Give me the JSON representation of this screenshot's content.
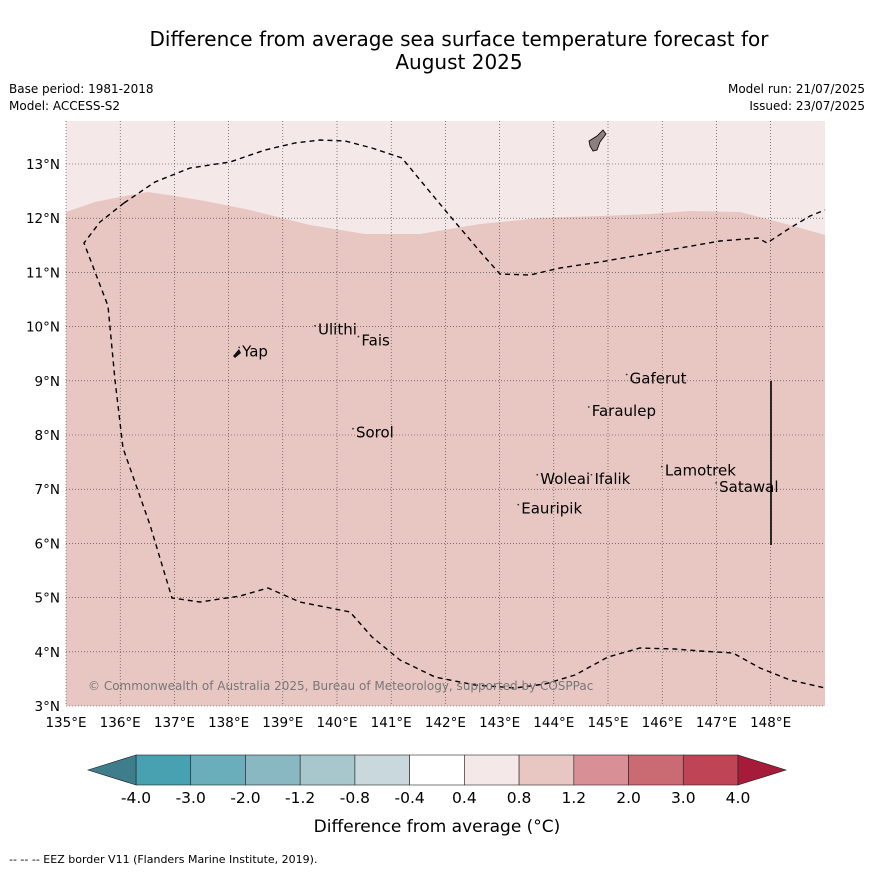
{
  "title_line1": "Difference from average sea surface temperature forecast for",
  "title_line2": "August 2025",
  "meta": {
    "base_period": "Base period: 1981-2018",
    "model": "Model: ACCESS-S2",
    "model_run": "Model run: 21/07/2025",
    "issued": "Issued: 23/07/2025"
  },
  "map": {
    "lon_ticks": [
      "135°E",
      "136°E",
      "137°E",
      "138°E",
      "139°E",
      "140°E",
      "141°E",
      "142°E",
      "143°E",
      "144°E",
      "145°E",
      "146°E",
      "147°E",
      "148°E"
    ],
    "lat_ticks": [
      "3°N",
      "4°N",
      "5°N",
      "6°N",
      "7°N",
      "8°N",
      "9°N",
      "10°N",
      "11°N",
      "12°N",
      "13°N"
    ],
    "extent": {
      "lon": [
        135,
        149
      ],
      "lat": [
        3,
        13.8
      ]
    },
    "places": [
      {
        "name": "Yap",
        "lon": 138.25,
        "lat": 9.45
      },
      {
        "name": "Ulithi",
        "lon": 139.65,
        "lat": 9.85
      },
      {
        "name": "Fais",
        "lon": 140.45,
        "lat": 9.65
      },
      {
        "name": "Gaferut",
        "lon": 145.4,
        "lat": 8.95
      },
      {
        "name": "Faraulep",
        "lon": 144.7,
        "lat": 8.35
      },
      {
        "name": "Sorol",
        "lon": 140.35,
        "lat": 7.95
      },
      {
        "name": "Lamotrek",
        "lon": 146.05,
        "lat": 7.25
      },
      {
        "name": "Woleai",
        "lon": 143.75,
        "lat": 7.1
      },
      {
        "name": "Ifalik",
        "lon": 144.75,
        "lat": 7.1
      },
      {
        "name": "Satawal",
        "lon": 147.05,
        "lat": 6.95
      },
      {
        "name": "Eauripik",
        "lon": 143.4,
        "lat": 6.55
      }
    ],
    "copyright": "© Commonwealth of Australia 2025, Bureau of Meteorology, supported by COSPPac",
    "fill_colors": {
      "band_04_08": "#f5e8e8",
      "band_08_12": "#e8c7c3",
      "land": "#8e7f7e"
    }
  },
  "colorbar": {
    "ticks": [
      "-4.0",
      "-3.0",
      "-2.0",
      "-1.2",
      "-0.8",
      "-0.4",
      "0.4",
      "0.8",
      "1.2",
      "2.0",
      "3.0",
      "4.0"
    ],
    "colors": [
      "#47a1b1",
      "#6aadbb",
      "#89b8c3",
      "#a8c7cd",
      "#c8d8dc",
      "#ffffff",
      "#f5e8e8",
      "#e8c7c3",
      "#d88f95",
      "#ca6a73",
      "#bf4556"
    ],
    "under_color": "#3e7e8c",
    "over_color": "#a51b39",
    "label": "Difference from average (°C)"
  },
  "footnote": "--  --  -- EEZ border V11 (Flanders Marine Institute, 2019)."
}
